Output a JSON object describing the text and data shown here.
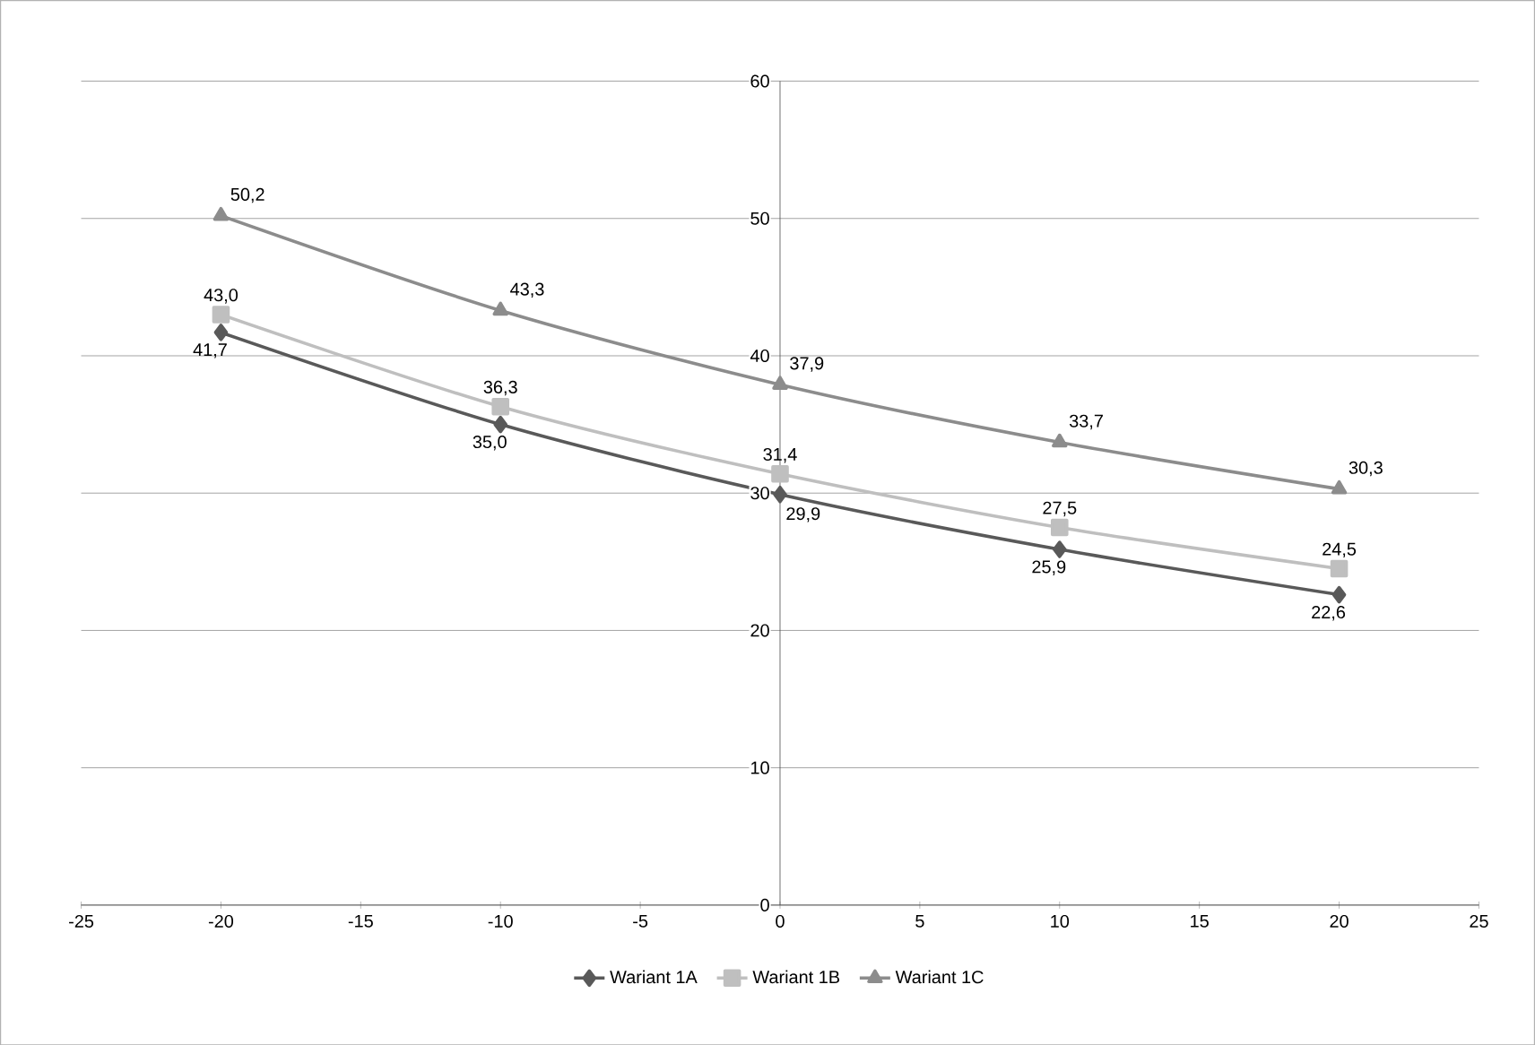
{
  "chart_data": {
    "type": "line",
    "x": [
      -20,
      -10,
      0,
      10,
      20
    ],
    "series": [
      {
        "name": "Wariant 1A",
        "color": "#595959",
        "marker": "diamond",
        "values": [
          41.7,
          35.0,
          29.9,
          25.9,
          22.6
        ],
        "value_labels": [
          "41,7",
          "35,0",
          "29,9",
          "25,9",
          "22,6"
        ]
      },
      {
        "name": "Wariant 1B",
        "color": "#bfbfbf",
        "marker": "square",
        "values": [
          43.0,
          36.3,
          31.4,
          27.5,
          24.5
        ],
        "value_labels": [
          "43,0",
          "36,3",
          "31,4",
          "27,5",
          "24,5"
        ]
      },
      {
        "name": "Wariant 1C",
        "color": "#8c8c8c",
        "marker": "triangle",
        "values": [
          50.2,
          43.3,
          37.9,
          33.7,
          30.3
        ],
        "value_labels": [
          "50,2",
          "43,3",
          "37,9",
          "33,7",
          "30,3"
        ]
      }
    ],
    "xlim": [
      -25,
      25
    ],
    "xticks": [
      -25,
      -20,
      -15,
      -10,
      -5,
      0,
      5,
      10,
      15,
      20,
      25
    ],
    "ylim": [
      0,
      60
    ],
    "yticks": [
      0,
      10,
      20,
      30,
      40,
      50,
      60
    ],
    "grid": "y",
    "legend": "bottom",
    "line_style": "solid"
  }
}
